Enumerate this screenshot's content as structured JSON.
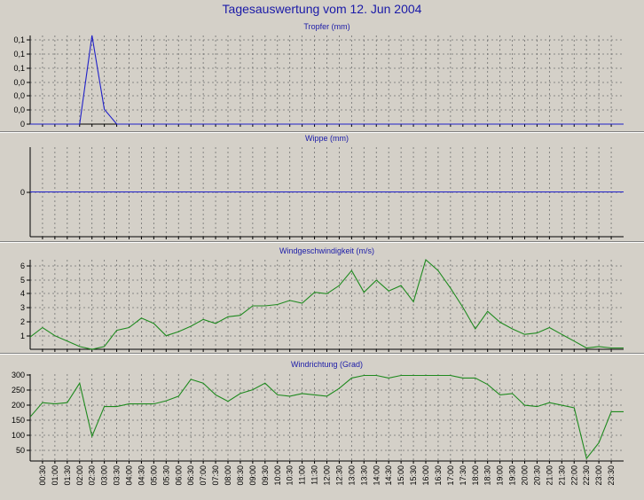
{
  "page": {
    "title": "Tagesauswertung vom 12. Jun 2004"
  },
  "x_ticks": [
    "00:30",
    "01:00",
    "01:30",
    "02:00",
    "02:30",
    "03:00",
    "03:30",
    "04:00",
    "04:30",
    "05:00",
    "05:30",
    "06:00",
    "06:30",
    "07:00",
    "07:30",
    "08:00",
    "08:30",
    "09:00",
    "09:30",
    "10:00",
    "10:30",
    "11:00",
    "11:30",
    "12:00",
    "12:30",
    "13:00",
    "13:30",
    "14:00",
    "14:30",
    "15:00",
    "15:30",
    "16:00",
    "16:30",
    "17:00",
    "17:30",
    "18:00",
    "18:30",
    "19:00",
    "19:30",
    "20:00",
    "20:30",
    "21:00",
    "21:30",
    "22:00",
    "22:30",
    "23:00",
    "23:30"
  ],
  "colors": {
    "title": "#1a1aa8",
    "plot_bg": "#d4d0c8",
    "grid": "#707070",
    "blue_series": "#2020c8",
    "green_series": "#1f8a1f"
  },
  "chart_data": [
    {
      "type": "line",
      "title": "Tropfer (mm)",
      "y_tick_labels": [
        "0",
        "0,0",
        "0,0",
        "0,0",
        "0,1",
        "0,1",
        "0,1"
      ],
      "ylim": [
        0,
        0.12
      ],
      "grid": true,
      "color": "#2020c8",
      "x": [
        "00:00",
        "00:30",
        "01:00",
        "01:30",
        "02:00",
        "02:30",
        "03:00",
        "03:30",
        "04:00",
        "04:30",
        "05:00",
        "05:30",
        "06:00",
        "06:30",
        "07:00",
        "07:30",
        "08:00",
        "08:30",
        "09:00",
        "09:30",
        "10:00",
        "10:30",
        "11:00",
        "11:30",
        "12:00",
        "12:30",
        "13:00",
        "13:30",
        "14:00",
        "14:30",
        "15:00",
        "15:30",
        "16:00",
        "16:30",
        "17:00",
        "17:30",
        "18:00",
        "18:30",
        "19:00",
        "19:30",
        "20:00",
        "20:30",
        "21:00",
        "21:30",
        "22:00",
        "22:30",
        "23:00",
        "23:30",
        "24:00"
      ],
      "values": [
        0,
        0,
        0,
        0,
        0,
        0.12,
        0.02,
        0,
        0,
        0,
        0,
        0,
        0,
        0,
        0,
        0,
        0,
        0,
        0,
        0,
        0,
        0,
        0,
        0,
        0,
        0,
        0,
        0,
        0,
        0,
        0,
        0,
        0,
        0,
        0,
        0,
        0,
        0,
        0,
        0,
        0,
        0,
        0,
        0,
        0,
        0,
        0,
        0,
        0
      ]
    },
    {
      "type": "line",
      "title": "Wippe (mm)",
      "y_tick_labels": [
        "0"
      ],
      "ylim": [
        -1,
        1
      ],
      "grid": true,
      "color": "#2020c8",
      "x": [
        "00:00",
        "24:00"
      ],
      "values": [
        0,
        0
      ]
    },
    {
      "type": "line",
      "title": "Windgeschwindigkeit (m/s)",
      "y_tick_labels": [
        "1",
        "2",
        "3",
        "4",
        "5",
        "6"
      ],
      "ylim": [
        0,
        6.6
      ],
      "grid": true,
      "color": "#1f8a1f",
      "x": [
        "00:00",
        "00:30",
        "01:00",
        "01:30",
        "02:00",
        "02:30",
        "03:00",
        "03:30",
        "04:00",
        "04:30",
        "05:00",
        "05:30",
        "06:00",
        "06:30",
        "07:00",
        "07:30",
        "08:00",
        "08:30",
        "09:00",
        "09:30",
        "10:00",
        "10:30",
        "11:00",
        "11:30",
        "12:00",
        "12:30",
        "13:00",
        "13:30",
        "14:00",
        "14:30",
        "15:00",
        "15:30",
        "16:00",
        "16:30",
        "17:00",
        "17:30",
        "18:00",
        "18:30",
        "19:00",
        "19:30",
        "20:00",
        "20:30",
        "21:00",
        "21:30",
        "22:00",
        "22:30",
        "23:00",
        "23:30",
        "24:00"
      ],
      "values": [
        0.9,
        1.6,
        1.0,
        0.6,
        0.2,
        0.0,
        0.2,
        1.4,
        1.6,
        2.3,
        1.9,
        1.0,
        1.3,
        1.7,
        2.2,
        1.9,
        2.4,
        2.5,
        3.2,
        3.2,
        3.3,
        3.6,
        3.4,
        4.2,
        4.1,
        4.7,
        5.8,
        4.2,
        5.1,
        4.3,
        4.7,
        3.5,
        6.6,
        5.8,
        4.5,
        3.1,
        1.5,
        2.8,
        2.0,
        1.5,
        1.1,
        1.2,
        1.6,
        1.1,
        0.6,
        0.1,
        0.2,
        0.1,
        0.1
      ]
    },
    {
      "type": "line",
      "title": "Windrichtung (Grad)",
      "y_tick_labels": [
        "50",
        "100",
        "150",
        "200",
        "250",
        "300"
      ],
      "ylim": [
        0,
        335
      ],
      "grid": true,
      "color": "#1f8a1f",
      "x": [
        "00:00",
        "00:30",
        "01:00",
        "01:30",
        "02:00",
        "02:30",
        "03:00",
        "03:30",
        "04:00",
        "04:30",
        "05:00",
        "05:30",
        "06:00",
        "06:30",
        "07:00",
        "07:30",
        "08:00",
        "08:30",
        "09:00",
        "09:30",
        "10:00",
        "10:30",
        "11:00",
        "11:30",
        "12:00",
        "12:30",
        "13:00",
        "13:30",
        "14:00",
        "14:30",
        "15:00",
        "15:30",
        "16:00",
        "16:30",
        "17:00",
        "17:30",
        "18:00",
        "18:30",
        "19:00",
        "19:30",
        "20:00",
        "20:30",
        "21:00",
        "21:30",
        "22:00",
        "22:30",
        "23:00",
        "23:30",
        "24:00"
      ],
      "values": [
        170,
        225,
        220,
        225,
        300,
        95,
        210,
        210,
        220,
        220,
        220,
        232,
        250,
        315,
        300,
        255,
        230,
        260,
        275,
        300,
        255,
        250,
        260,
        255,
        250,
        280,
        320,
        330,
        330,
        320,
        330,
        330,
        330,
        330,
        330,
        320,
        320,
        295,
        255,
        260,
        215,
        210,
        225,
        215,
        205,
        10,
        70,
        190,
        190
      ]
    }
  ]
}
